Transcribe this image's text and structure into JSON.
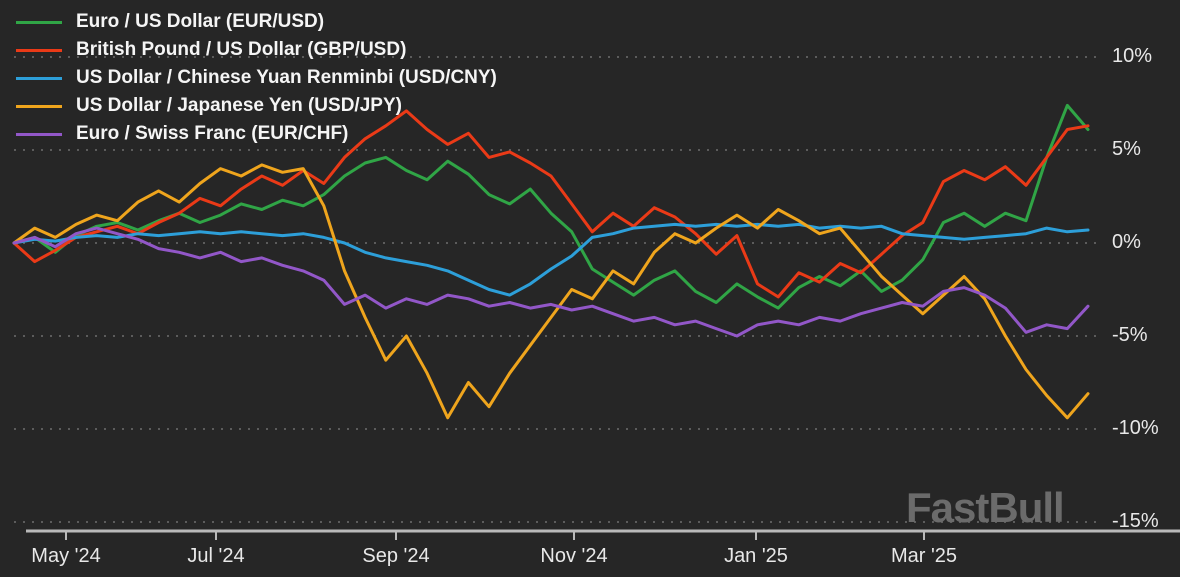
{
  "watermark": "FastBull",
  "colors": {
    "background": "#262626",
    "grid": "#5c5c5c",
    "axis": "#b9b9b9",
    "label_text": "#e8e8e8",
    "legend_text": "#f5f5f5",
    "watermark": "#6b6b6b"
  },
  "chart_data": {
    "type": "line",
    "title": "",
    "unit": "%",
    "grid": "dotted horizontal",
    "legend_position": "top-left",
    "ylim": [
      -15,
      10
    ],
    "y_ticks_percent": [
      10,
      5,
      0,
      -5,
      -10,
      -15
    ],
    "y_tick_labels": [
      "10%",
      "5%",
      "0%",
      "-5%",
      "-10%",
      "-15%"
    ],
    "x_tick_labels": [
      "May '24",
      "Jul '24",
      "Sep '24",
      "Nov '24",
      "Jan '25",
      "Mar '25"
    ],
    "series": [
      {
        "name": "Euro / US Dollar (EUR/USD)",
        "code": "EUR/USD",
        "color": "#30a546",
        "values": [
          0,
          0.3,
          -0.5,
          0.4,
          0.9,
          1.1,
          0.7,
          1.2,
          1.6,
          1.1,
          1.5,
          2.1,
          1.8,
          2.3,
          2.0,
          2.6,
          3.6,
          4.3,
          4.6,
          3.9,
          3.4,
          4.4,
          3.7,
          2.6,
          2.1,
          2.9,
          1.6,
          0.6,
          -1.4,
          -2.1,
          -2.8,
          -2.0,
          -1.5,
          -2.6,
          -3.2,
          -2.2,
          -2.9,
          -3.5,
          -2.4,
          -1.8,
          -2.3,
          -1.5,
          -2.6,
          -2.0,
          -0.9,
          1.1,
          1.6,
          0.9,
          1.6,
          1.2,
          4.6,
          7.4,
          6.1
        ]
      },
      {
        "name": "British Pound / US Dollar (GBP/USD)",
        "code": "GBP/USD",
        "color": "#ea3a17",
        "values": [
          0,
          -1.0,
          -0.4,
          0.3,
          0.6,
          0.9,
          0.5,
          1.1,
          1.6,
          2.4,
          2.0,
          2.9,
          3.6,
          3.1,
          3.9,
          3.2,
          4.6,
          5.6,
          6.3,
          7.1,
          6.1,
          5.3,
          5.9,
          4.6,
          4.9,
          4.3,
          3.6,
          2.1,
          0.6,
          1.6,
          0.9,
          1.9,
          1.4,
          0.5,
          -0.6,
          0.4,
          -2.2,
          -2.9,
          -1.6,
          -2.1,
          -1.1,
          -1.6,
          -0.6,
          0.4,
          1.1,
          3.3,
          3.9,
          3.4,
          4.1,
          3.1,
          4.6,
          6.1,
          6.3
        ]
      },
      {
        "name": "US Dollar / Chinese Yuan Renminbi (USD/CNY)",
        "code": "USD/CNY",
        "color": "#2d9fd9",
        "values": [
          0,
          0.2,
          0.1,
          0.3,
          0.4,
          0.3,
          0.5,
          0.4,
          0.5,
          0.6,
          0.5,
          0.6,
          0.5,
          0.4,
          0.5,
          0.3,
          0.0,
          -0.5,
          -0.8,
          -1.0,
          -1.2,
          -1.5,
          -2.0,
          -2.5,
          -2.8,
          -2.2,
          -1.4,
          -0.7,
          0.3,
          0.5,
          0.8,
          0.9,
          1.0,
          0.9,
          1.0,
          0.9,
          1.0,
          0.9,
          1.0,
          0.8,
          0.9,
          0.8,
          0.9,
          0.5,
          0.4,
          0.3,
          0.2,
          0.3,
          0.4,
          0.5,
          0.8,
          0.6,
          0.7
        ]
      },
      {
        "name": "US Dollar / Japanese Yen (USD/JPY)",
        "code": "USD/JPY",
        "color": "#efa51d",
        "values": [
          0,
          0.8,
          0.3,
          1.0,
          1.5,
          1.2,
          2.2,
          2.8,
          2.2,
          3.2,
          4.0,
          3.6,
          4.2,
          3.8,
          4.0,
          2.0,
          -1.5,
          -4.0,
          -6.3,
          -5.0,
          -7.0,
          -9.4,
          -7.5,
          -8.8,
          -7.0,
          -5.5,
          -4.0,
          -2.5,
          -3.0,
          -1.5,
          -2.2,
          -0.5,
          0.5,
          0.0,
          0.8,
          1.5,
          0.8,
          1.8,
          1.2,
          0.5,
          0.8,
          -0.5,
          -1.8,
          -2.8,
          -3.8,
          -2.8,
          -1.8,
          -3.0,
          -5.0,
          -6.8,
          -8.2,
          -9.4,
          -8.1
        ]
      },
      {
        "name": "Euro / Swiss Franc (EUR/CHF)",
        "code": "EUR/CHF",
        "color": "#9257c8",
        "values": [
          0,
          0.3,
          -0.2,
          0.5,
          0.8,
          0.5,
          0.2,
          -0.3,
          -0.5,
          -0.8,
          -0.5,
          -1.0,
          -0.8,
          -1.2,
          -1.5,
          -2.0,
          -3.3,
          -2.8,
          -3.5,
          -3.0,
          -3.3,
          -2.8,
          -3.0,
          -3.4,
          -3.2,
          -3.5,
          -3.3,
          -3.6,
          -3.4,
          -3.8,
          -4.2,
          -4.0,
          -4.4,
          -4.2,
          -4.6,
          -5.0,
          -4.4,
          -4.2,
          -4.4,
          -4.0,
          -4.2,
          -3.8,
          -3.5,
          -3.2,
          -3.4,
          -2.6,
          -2.4,
          -2.8,
          -3.5,
          -4.8,
          -4.4,
          -4.6,
          -3.4
        ]
      }
    ]
  }
}
